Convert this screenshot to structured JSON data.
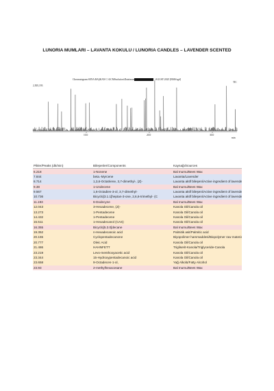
{
  "header": {
    "title": "LUNORIA MUMLARI – LAVANTA KOKULU / LUNORIA CANDLES – LAVENDER SCENTED"
  },
  "chromatogram": {
    "caption": "Chromatogram SENA BAŞKAN C:\\GCMSsolution\\Data\\mum\\",
    "date": "/AGUST/2025 [BMS/sgd]",
    "top_left": "2,505,193",
    "top_right": "TIC",
    "x_labels": [
      "10.0",
      "20.0",
      "30.0"
    ],
    "x_unit": "min"
  },
  "table": {
    "columns": [
      "Pikler/Peaks (dk/min)",
      "Bileşenler/Components",
      "Kaynağı/Sources"
    ],
    "rows": [
      {
        "peak": "6.218",
        "component": "1-Nonene",
        "source": "Bal mumu/Bees Wax",
        "color": "#f8dcdc"
      },
      {
        "peak": "7.844",
        "component": "beta.-Myrcene",
        "source": "Lavanta/Lavender",
        "color": "#dbe3f3"
      },
      {
        "peak": "8.714",
        "component": "1,3,6-Octatriene, 3,7-dimethyl-, (Z)-",
        "source": "Lavanta aktif bileşeni/Active ingredient of lavender",
        "color": "#dbe3f3"
      },
      {
        "peak": "9.38",
        "component": "1-Undecene",
        "source": "Bal mumu/Bees Wax",
        "color": "#f8dcdc"
      },
      {
        "peak": "9.567",
        "component": "1,6-Octadien-3-ol, 3,7-dimethyl-",
        "source": "Lavanta aktif bileşeni/Active ingredient of lavender",
        "color": "#dbe3f3"
      },
      {
        "peak": "10.736",
        "component": "Bicyclo[3.1.1]heptan-3-one, 2,6,6-trimethyl- (C",
        "source": "Lavanta aktif bileşeni/Active ingredient of lavender",
        "color": "#dbe3f3"
      },
      {
        "peak": "11.193",
        "component": "6-Dodecyne",
        "source": "Bal mumu/Bees Wax",
        "color": "#f8dcdc"
      },
      {
        "peak": "12.043",
        "component": "3-Hexadecene, (Z)-",
        "source": "Kanola Oil/Canola oil",
        "color": "#fdeccb"
      },
      {
        "peak": "13.273",
        "component": "1-Pentadecene",
        "source": "Kanola Oil/Canola oil",
        "color": "#fdeccb"
      },
      {
        "peak": "14.432",
        "component": "1-Pentadecene",
        "source": "Kanola Oil/Canola oil",
        "color": "#fdeccb"
      },
      {
        "peak": "15.511",
        "component": "1-Hexadecanol (CAS)",
        "source": "Kanola Oil/Canola oil",
        "color": "#fdeccb"
      },
      {
        "peak": "16.355",
        "component": "Bicyclo[5.3.0]decane",
        "source": "Bal mumu/Bees Wax",
        "color": "#f8dcdc"
      },
      {
        "peak": "19.352",
        "component": "n-Hexadecanoic acid",
        "source": "Palmitik asit/Palmitic acid",
        "color": "#fdeccb"
      },
      {
        "peak": "20.155",
        "component": "Cyclopentadecanone",
        "source": "Biyopolimer hammaddesi/Biopolymer raw material",
        "color": "#fdeccb"
      },
      {
        "peak": "20.777",
        "component": "Oleic Acid",
        "source": "Kanola Oil/Canola oil",
        "color": "#fdeccb"
      },
      {
        "peak": "21.486",
        "component": "HAHNFETT",
        "source": "Trigliserit-Kanola/Triglyceride-Canola",
        "color": "#fdeccb"
      },
      {
        "peak": "23.219",
        "component": "Levo-menthoxyacetic acid",
        "source": "Kanola Oil/Canola oil",
        "color": "#fdeccb"
      },
      {
        "peak": "23.344",
        "component": "15-Hydroxypentadecanoic acid",
        "source": "Kanola Oil/Canola oil",
        "color": "#fdeccb"
      },
      {
        "peak": "23.658",
        "component": "9-Octadecen-1-ol,",
        "source": "Yağ Alkolü/Fatty Alcohol",
        "color": "#fdeccb"
      },
      {
        "peak": "23.93",
        "component": "2-methylhexacosane",
        "source": "Bal mumu/Bees Wax",
        "color": "#f8dcdc"
      }
    ]
  }
}
